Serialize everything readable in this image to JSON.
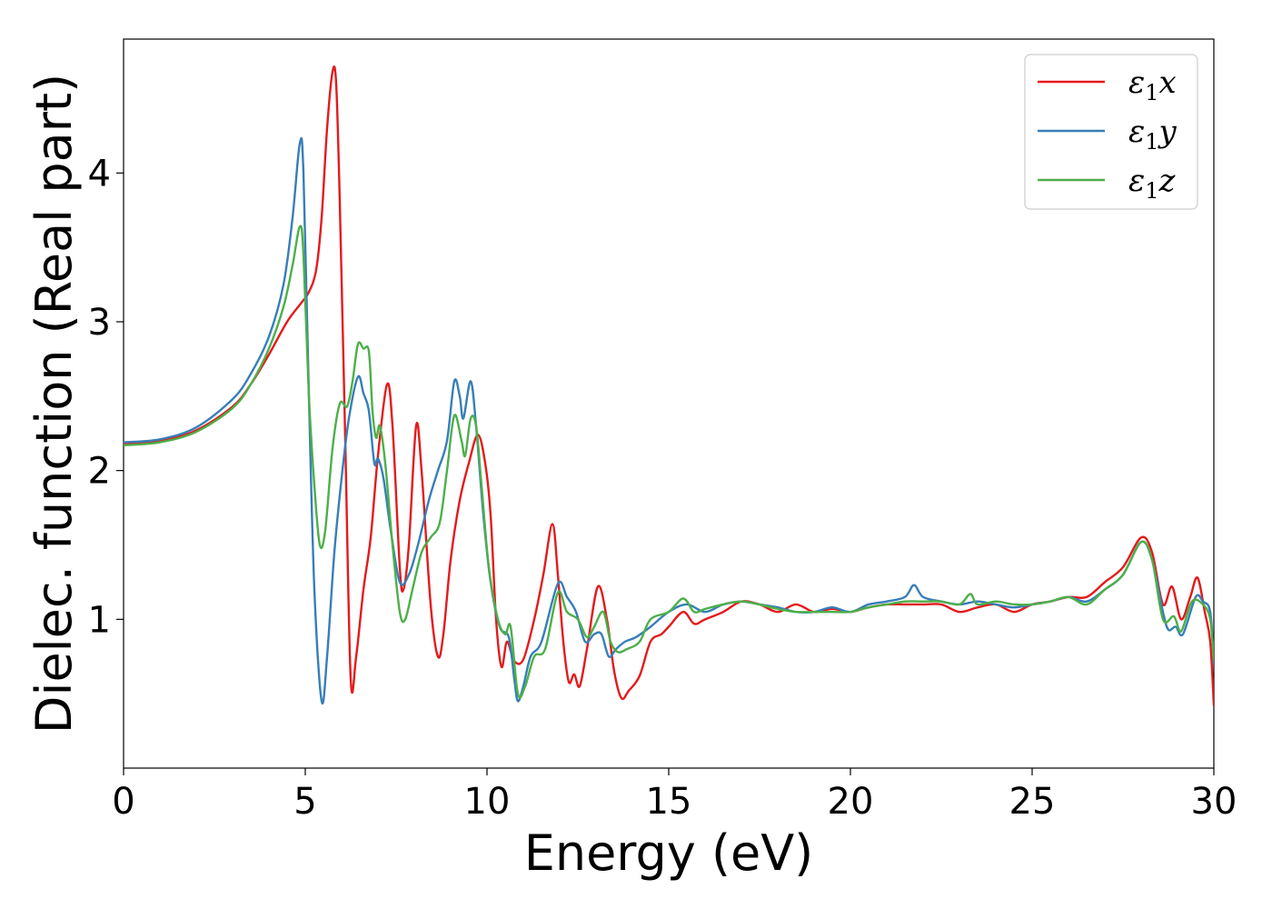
{
  "chart_data": {
    "type": "line",
    "title": "",
    "xlabel": "Energy (eV)",
    "ylabel": "Dielec. function (Real part)",
    "xlim": [
      0,
      30
    ],
    "ylim": [
      0,
      4.9
    ],
    "xticks": [
      0,
      5,
      10,
      15,
      20,
      25,
      30
    ],
    "yticks": [
      1,
      2,
      3,
      4
    ],
    "grid": false,
    "legend_position": "top-right",
    "series": [
      {
        "name": "ε₁x",
        "legend_symbol": "ε",
        "legend_sub": "1",
        "legend_suffix": "x",
        "color": "#e41a1c",
        "points": [
          [
            0,
            2.18
          ],
          [
            1,
            2.2
          ],
          [
            2,
            2.27
          ],
          [
            3,
            2.43
          ],
          [
            3.5,
            2.58
          ],
          [
            4,
            2.78
          ],
          [
            4.5,
            3.0
          ],
          [
            4.9,
            3.13
          ],
          [
            5.1,
            3.2
          ],
          [
            5.3,
            3.35
          ],
          [
            5.45,
            3.7
          ],
          [
            5.6,
            4.3
          ],
          [
            5.75,
            4.68
          ],
          [
            5.85,
            4.6
          ],
          [
            5.95,
            3.8
          ],
          [
            6.1,
            2.2
          ],
          [
            6.25,
            0.6
          ],
          [
            6.4,
            0.75
          ],
          [
            6.6,
            1.2
          ],
          [
            6.8,
            1.55
          ],
          [
            7.0,
            2.1
          ],
          [
            7.25,
            2.58
          ],
          [
            7.4,
            2.3
          ],
          [
            7.6,
            1.35
          ],
          [
            7.7,
            1.2
          ],
          [
            7.85,
            1.5
          ],
          [
            8.05,
            2.3
          ],
          [
            8.2,
            2.0
          ],
          [
            8.45,
            1.1
          ],
          [
            8.65,
            0.75
          ],
          [
            8.8,
            0.9
          ],
          [
            9.0,
            1.4
          ],
          [
            9.25,
            1.8
          ],
          [
            9.5,
            2.05
          ],
          [
            9.75,
            2.24
          ],
          [
            9.95,
            2.05
          ],
          [
            10.1,
            1.7
          ],
          [
            10.25,
            1.0
          ],
          [
            10.4,
            0.68
          ],
          [
            10.55,
            0.85
          ],
          [
            10.75,
            0.72
          ],
          [
            11.0,
            0.73
          ],
          [
            11.3,
            1.0
          ],
          [
            11.55,
            1.3
          ],
          [
            11.8,
            1.64
          ],
          [
            11.95,
            1.3
          ],
          [
            12.1,
            0.85
          ],
          [
            12.25,
            0.58
          ],
          [
            12.4,
            0.63
          ],
          [
            12.55,
            0.55
          ],
          [
            12.75,
            0.8
          ],
          [
            13.05,
            1.22
          ],
          [
            13.3,
            1.0
          ],
          [
            13.5,
            0.65
          ],
          [
            13.7,
            0.47
          ],
          [
            13.9,
            0.52
          ],
          [
            14.2,
            0.62
          ],
          [
            14.5,
            0.85
          ],
          [
            14.8,
            0.9
          ],
          [
            15.0,
            0.95
          ],
          [
            15.4,
            1.05
          ],
          [
            15.7,
            0.97
          ],
          [
            16,
            1.0
          ],
          [
            16.5,
            1.05
          ],
          [
            17,
            1.12
          ],
          [
            17.5,
            1.1
          ],
          [
            18,
            1.05
          ],
          [
            18.5,
            1.1
          ],
          [
            19,
            1.05
          ],
          [
            19.5,
            1.07
          ],
          [
            20,
            1.05
          ],
          [
            20.5,
            1.08
          ],
          [
            21,
            1.1
          ],
          [
            21.5,
            1.1
          ],
          [
            22,
            1.1
          ],
          [
            22.5,
            1.1
          ],
          [
            23,
            1.05
          ],
          [
            23.5,
            1.08
          ],
          [
            24,
            1.1
          ],
          [
            24.5,
            1.05
          ],
          [
            25,
            1.1
          ],
          [
            25.5,
            1.12
          ],
          [
            26,
            1.15
          ],
          [
            26.5,
            1.15
          ],
          [
            27,
            1.25
          ],
          [
            27.5,
            1.35
          ],
          [
            28.0,
            1.55
          ],
          [
            28.3,
            1.45
          ],
          [
            28.6,
            1.1
          ],
          [
            28.85,
            1.22
          ],
          [
            29.1,
            1.0
          ],
          [
            29.35,
            1.15
          ],
          [
            29.55,
            1.28
          ],
          [
            29.75,
            1.05
          ],
          [
            29.9,
            0.85
          ],
          [
            30,
            0.42
          ]
        ]
      },
      {
        "name": "ε₁y",
        "legend_symbol": "ε",
        "legend_sub": "1",
        "legend_suffix": "y",
        "color": "#377eb8",
        "points": [
          [
            0,
            2.19
          ],
          [
            1,
            2.21
          ],
          [
            2,
            2.29
          ],
          [
            3,
            2.48
          ],
          [
            3.5,
            2.65
          ],
          [
            4,
            2.9
          ],
          [
            4.4,
            3.25
          ],
          [
            4.65,
            3.7
          ],
          [
            4.85,
            4.2
          ],
          [
            4.95,
            4.0
          ],
          [
            5.1,
            2.5
          ],
          [
            5.25,
            1.2
          ],
          [
            5.45,
            0.45
          ],
          [
            5.6,
            0.75
          ],
          [
            5.8,
            1.45
          ],
          [
            6.0,
            1.95
          ],
          [
            6.2,
            2.35
          ],
          [
            6.45,
            2.63
          ],
          [
            6.6,
            2.52
          ],
          [
            6.75,
            2.4
          ],
          [
            6.9,
            2.05
          ],
          [
            7.0,
            2.08
          ],
          [
            7.15,
            1.95
          ],
          [
            7.35,
            1.6
          ],
          [
            7.6,
            1.25
          ],
          [
            7.85,
            1.3
          ],
          [
            8.1,
            1.5
          ],
          [
            8.4,
            1.8
          ],
          [
            8.65,
            2.0
          ],
          [
            8.9,
            2.2
          ],
          [
            9.1,
            2.6
          ],
          [
            9.25,
            2.5
          ],
          [
            9.35,
            2.35
          ],
          [
            9.55,
            2.6
          ],
          [
            9.7,
            2.3
          ],
          [
            9.9,
            1.7
          ],
          [
            10.1,
            1.25
          ],
          [
            10.35,
            0.95
          ],
          [
            10.6,
            0.88
          ],
          [
            10.75,
            0.6
          ],
          [
            10.85,
            0.45
          ],
          [
            11.0,
            0.55
          ],
          [
            11.2,
            0.75
          ],
          [
            11.5,
            0.85
          ],
          [
            11.95,
            1.24
          ],
          [
            12.2,
            1.15
          ],
          [
            12.45,
            1.05
          ],
          [
            12.7,
            0.85
          ],
          [
            12.95,
            0.9
          ],
          [
            13.15,
            0.9
          ],
          [
            13.35,
            0.75
          ],
          [
            13.55,
            0.8
          ],
          [
            13.8,
            0.85
          ],
          [
            14.1,
            0.88
          ],
          [
            14.5,
            0.95
          ],
          [
            15,
            1.05
          ],
          [
            15.5,
            1.1
          ],
          [
            16,
            1.05
          ],
          [
            16.5,
            1.1
          ],
          [
            17,
            1.12
          ],
          [
            17.5,
            1.1
          ],
          [
            18,
            1.08
          ],
          [
            18.5,
            1.05
          ],
          [
            19,
            1.05
          ],
          [
            19.5,
            1.08
          ],
          [
            20,
            1.05
          ],
          [
            20.5,
            1.1
          ],
          [
            21,
            1.12
          ],
          [
            21.5,
            1.15
          ],
          [
            21.75,
            1.23
          ],
          [
            22,
            1.15
          ],
          [
            22.5,
            1.12
          ],
          [
            23,
            1.1
          ],
          [
            23.5,
            1.12
          ],
          [
            24,
            1.1
          ],
          [
            24.5,
            1.08
          ],
          [
            25,
            1.1
          ],
          [
            25.5,
            1.12
          ],
          [
            26,
            1.15
          ],
          [
            26.5,
            1.12
          ],
          [
            27,
            1.2
          ],
          [
            27.5,
            1.3
          ],
          [
            28.0,
            1.52
          ],
          [
            28.3,
            1.4
          ],
          [
            28.6,
            1.05
          ],
          [
            28.75,
            0.93
          ],
          [
            28.95,
            0.95
          ],
          [
            29.15,
            0.9
          ],
          [
            29.5,
            1.15
          ],
          [
            29.7,
            1.12
          ],
          [
            29.9,
            1.05
          ],
          [
            30,
            0.7
          ]
        ]
      },
      {
        "name": "ε₁z",
        "legend_symbol": "ε",
        "legend_sub": "1",
        "legend_suffix": "z",
        "color": "#4daf4a",
        "points": [
          [
            0,
            2.17
          ],
          [
            1,
            2.19
          ],
          [
            2,
            2.26
          ],
          [
            3,
            2.42
          ],
          [
            3.5,
            2.58
          ],
          [
            4,
            2.82
          ],
          [
            4.4,
            3.1
          ],
          [
            4.65,
            3.38
          ],
          [
            4.85,
            3.64
          ],
          [
            4.95,
            3.45
          ],
          [
            5.1,
            2.5
          ],
          [
            5.25,
            1.9
          ],
          [
            5.4,
            1.5
          ],
          [
            5.55,
            1.6
          ],
          [
            5.75,
            2.15
          ],
          [
            5.95,
            2.45
          ],
          [
            6.15,
            2.43
          ],
          [
            6.3,
            2.6
          ],
          [
            6.45,
            2.85
          ],
          [
            6.6,
            2.82
          ],
          [
            6.75,
            2.8
          ],
          [
            6.85,
            2.4
          ],
          [
            6.95,
            2.22
          ],
          [
            7.05,
            2.3
          ],
          [
            7.2,
            2.05
          ],
          [
            7.4,
            1.5
          ],
          [
            7.6,
            1.05
          ],
          [
            7.75,
            1.0
          ],
          [
            7.95,
            1.2
          ],
          [
            8.2,
            1.45
          ],
          [
            8.45,
            1.55
          ],
          [
            8.7,
            1.65
          ],
          [
            8.9,
            2.0
          ],
          [
            9.1,
            2.37
          ],
          [
            9.3,
            2.2
          ],
          [
            9.4,
            2.1
          ],
          [
            9.55,
            2.35
          ],
          [
            9.7,
            2.3
          ],
          [
            9.85,
            1.9
          ],
          [
            10.05,
            1.35
          ],
          [
            10.3,
            1.0
          ],
          [
            10.5,
            0.9
          ],
          [
            10.65,
            0.95
          ],
          [
            10.85,
            0.5
          ],
          [
            11.05,
            0.55
          ],
          [
            11.3,
            0.75
          ],
          [
            11.6,
            0.8
          ],
          [
            11.95,
            1.18
          ],
          [
            12.2,
            1.05
          ],
          [
            12.5,
            1.0
          ],
          [
            12.75,
            0.88
          ],
          [
            12.95,
            0.95
          ],
          [
            13.2,
            1.05
          ],
          [
            13.4,
            0.85
          ],
          [
            13.6,
            0.78
          ],
          [
            13.85,
            0.8
          ],
          [
            14.2,
            0.85
          ],
          [
            14.5,
            1.0
          ],
          [
            15,
            1.05
          ],
          [
            15.4,
            1.14
          ],
          [
            15.7,
            1.05
          ],
          [
            16,
            1.07
          ],
          [
            16.5,
            1.1
          ],
          [
            17,
            1.12
          ],
          [
            17.5,
            1.1
          ],
          [
            18,
            1.07
          ],
          [
            18.5,
            1.05
          ],
          [
            19,
            1.05
          ],
          [
            19.5,
            1.05
          ],
          [
            20,
            1.05
          ],
          [
            20.5,
            1.08
          ],
          [
            21,
            1.1
          ],
          [
            21.5,
            1.12
          ],
          [
            22,
            1.12
          ],
          [
            22.5,
            1.12
          ],
          [
            23,
            1.1
          ],
          [
            23.3,
            1.17
          ],
          [
            23.5,
            1.1
          ],
          [
            24,
            1.12
          ],
          [
            24.5,
            1.1
          ],
          [
            25,
            1.1
          ],
          [
            25.5,
            1.12
          ],
          [
            26,
            1.15
          ],
          [
            26.5,
            1.1
          ],
          [
            27,
            1.2
          ],
          [
            27.5,
            1.3
          ],
          [
            28.0,
            1.52
          ],
          [
            28.3,
            1.4
          ],
          [
            28.6,
            1.0
          ],
          [
            28.9,
            1.02
          ],
          [
            29.1,
            0.92
          ],
          [
            29.4,
            1.12
          ],
          [
            29.7,
            1.1
          ],
          [
            29.9,
            1.0
          ],
          [
            30,
            0.72
          ]
        ]
      }
    ]
  }
}
